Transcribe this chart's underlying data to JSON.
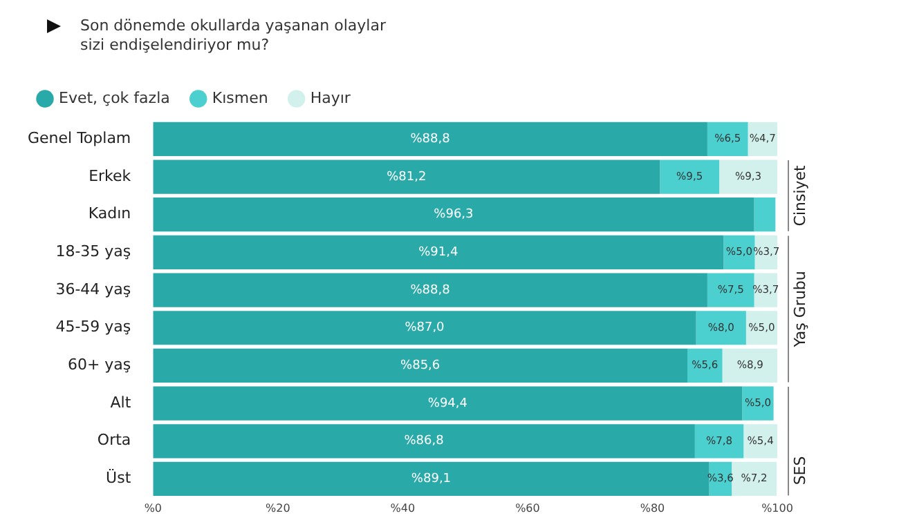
{
  "chart_data": {
    "type": "bar",
    "orientation": "horizontal",
    "stacked": true,
    "title": "Son dönemde okullarda yaşanan olaylar sizi endişelendiriyor mu?",
    "categories": [
      "Genel Toplam",
      "Erkek",
      "Kadın",
      "18-35 yaş",
      "36-44 yaş",
      "45-59 yaş",
      "60+ yaş",
      "Alt",
      "Orta",
      "Üst"
    ],
    "series": [
      {
        "name": "Evet, çok fazla",
        "color": "#2aa9a9",
        "values": [
          88.8,
          81.2,
          96.3,
          91.4,
          88.8,
          87.0,
          85.6,
          94.4,
          86.8,
          89.1
        ],
        "value_labels": [
          "%88,8",
          "%81,2",
          "%96,3",
          "%91,4",
          "%88,8",
          "%87,0",
          "%85,6",
          "%94,4",
          "%86,8",
          "%89,1"
        ]
      },
      {
        "name": "Kısmen",
        "color": "#4ccfcf",
        "values": [
          6.5,
          9.5,
          3.4,
          5.0,
          7.5,
          8.0,
          5.6,
          5.0,
          7.8,
          3.6
        ],
        "value_labels": [
          "%6,5",
          "%9,5",
          null,
          "%5,0",
          "%7,5",
          "%8,0",
          "%5,6",
          "%5,0",
          "%7,8",
          "%3,6"
        ]
      },
      {
        "name": "Hayır",
        "color": "#d3f1ec",
        "values": [
          4.7,
          9.3,
          null,
          3.7,
          3.7,
          5.0,
          8.9,
          null,
          5.4,
          7.2
        ],
        "value_labels": [
          "%4,7",
          "%9,3",
          null,
          "%3,7",
          "%3,7",
          "%5,0",
          "%8,9",
          null,
          "%5,4",
          "%7,2"
        ]
      }
    ],
    "xlim": [
      0,
      100
    ],
    "xticks": [
      {
        "value": 0,
        "label": "%0"
      },
      {
        "value": 20,
        "label": "%20"
      },
      {
        "value": 40,
        "label": "%40"
      },
      {
        "value": 60,
        "label": "%60"
      },
      {
        "value": 80,
        "label": "%80"
      },
      {
        "value": 100,
        "label": "%100"
      }
    ],
    "legend": "top left",
    "grid": false,
    "annotations": [
      "Cinsiyet",
      "Yaş Grubu",
      "SES"
    ]
  }
}
